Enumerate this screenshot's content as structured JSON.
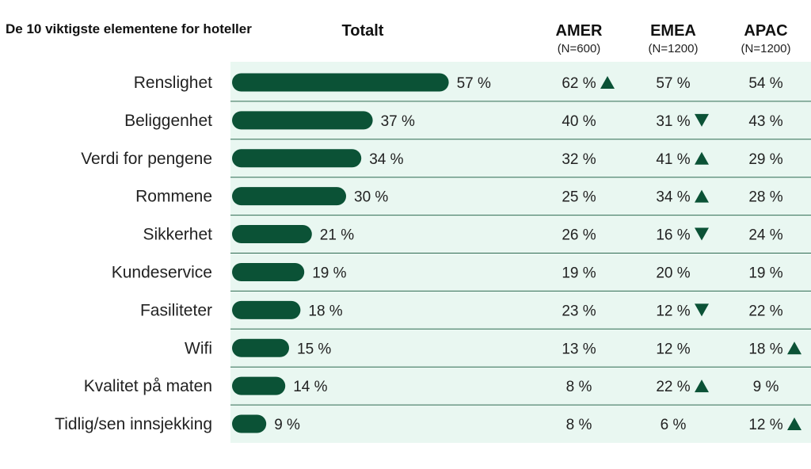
{
  "chart_data": {
    "type": "table",
    "title": "De 10 viktigste elementene for hoteller",
    "value_suffix": " %",
    "columns": [
      {
        "label": "Totalt",
        "sub": ""
      },
      {
        "label": "AMER",
        "sub": "(N=600)"
      },
      {
        "label": "EMEA",
        "sub": "(N=1200)"
      },
      {
        "label": "APAC",
        "sub": "(N=1200)"
      }
    ],
    "categories": [
      "Renslighet",
      "Beliggenhet",
      "Verdi for pengene",
      "Rommene",
      "Sikkerhet",
      "Kundeservice",
      "Fasiliteter",
      "Wifi",
      "Kvalitet på maten",
      "Tidlig/sen innsjekking"
    ],
    "series": [
      {
        "values": [
          57,
          37,
          34,
          30,
          21,
          19,
          18,
          15,
          14,
          9
        ]
      },
      {
        "values": [
          62,
          40,
          32,
          25,
          26,
          19,
          23,
          13,
          8,
          8
        ],
        "markers": [
          "up",
          "",
          "",
          "",
          "",
          "",
          "",
          "",
          "",
          ""
        ]
      },
      {
        "values": [
          57,
          31,
          41,
          34,
          16,
          20,
          12,
          12,
          22,
          6
        ],
        "markers": [
          "",
          "down",
          "up",
          "up",
          "down",
          "",
          "down",
          "",
          "up",
          ""
        ]
      },
      {
        "values": [
          54,
          43,
          29,
          28,
          24,
          19,
          22,
          18,
          9,
          12
        ],
        "markers": [
          "",
          "",
          "",
          "",
          "",
          "",
          "",
          "up",
          "",
          "up"
        ]
      }
    ],
    "bar_max": 100,
    "colors": {
      "bar": "#0b5236",
      "panel": "#e9f7f1",
      "divider": "#2f6b52",
      "marker": "#0b5236"
    }
  }
}
